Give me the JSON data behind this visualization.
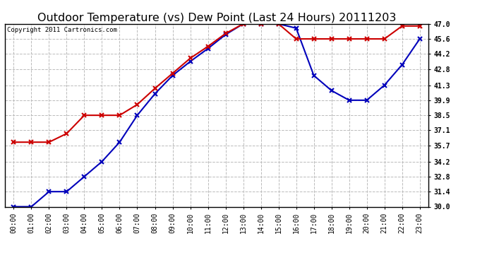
{
  "title": "Outdoor Temperature (vs) Dew Point (Last 24 Hours) 20111203",
  "copyright": "Copyright 2011 Cartronics.com",
  "x_labels": [
    "00:00",
    "01:00",
    "02:00",
    "03:00",
    "04:00",
    "05:00",
    "06:00",
    "07:00",
    "08:00",
    "09:00",
    "10:00",
    "11:00",
    "12:00",
    "13:00",
    "14:00",
    "15:00",
    "16:00",
    "17:00",
    "18:00",
    "19:00",
    "20:00",
    "21:00",
    "22:00",
    "23:00"
  ],
  "temp_values": [
    30.0,
    30.0,
    31.4,
    31.4,
    32.8,
    34.2,
    36.0,
    38.5,
    40.5,
    42.2,
    43.5,
    44.7,
    46.0,
    47.0,
    47.0,
    47.0,
    46.6,
    42.2,
    40.8,
    39.9,
    39.9,
    41.3,
    43.2,
    45.6
  ],
  "dew_values": [
    36.0,
    36.0,
    36.0,
    36.8,
    38.5,
    38.5,
    38.5,
    39.5,
    41.0,
    42.4,
    43.8,
    44.9,
    46.1,
    47.0,
    47.0,
    47.0,
    45.6,
    45.6,
    45.6,
    45.6,
    45.6,
    45.6,
    46.8,
    46.8
  ],
  "temp_color": "#0000bb",
  "dew_color": "#cc0000",
  "marker": "x",
  "ylim_min": 30.0,
  "ylim_max": 47.0,
  "yticks": [
    30.0,
    31.4,
    32.8,
    34.2,
    35.7,
    37.1,
    38.5,
    39.9,
    41.3,
    42.8,
    44.2,
    45.6,
    47.0
  ],
  "background_color": "#ffffff",
  "grid_color": "#bbbbbb",
  "title_fontsize": 11.5,
  "copyright_fontsize": 6.5,
  "tick_fontsize": 7.0,
  "linewidth": 1.5,
  "markersize": 4.5,
  "markeredgewidth": 1.5
}
